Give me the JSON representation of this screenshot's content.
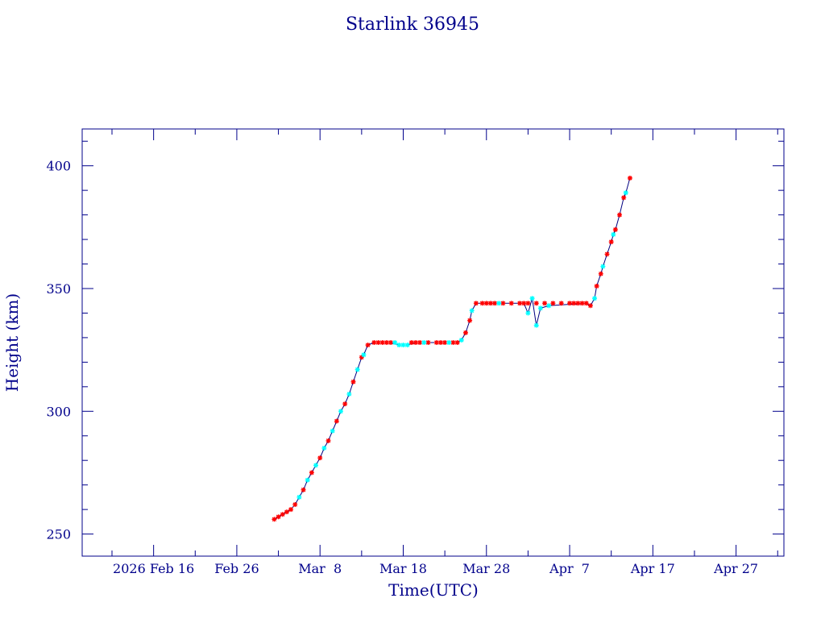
{
  "chart_data": {
    "type": "line",
    "title": "Starlink 36945",
    "xlabel": "Time(UTC)",
    "ylabel": "Height (km)",
    "x_tick_labels": [
      "2026 Feb 16",
      "Feb 26",
      "Mar  8",
      "Mar 18",
      "Mar 28",
      "Apr  7",
      "Apr 17",
      "Apr 27"
    ],
    "x_tick_dates": [
      "2026-02-16",
      "2026-02-26",
      "2026-03-08",
      "2026-03-18",
      "2026-03-28",
      "2026-04-07",
      "2026-04-17",
      "2026-04-27"
    ],
    "xlim": [
      "2026-02-07T10:00",
      "2026-05-02T18:00"
    ],
    "ylim": [
      241,
      415
    ],
    "y_ticks": [
      250,
      300,
      350,
      400
    ],
    "grid": false,
    "colors": {
      "axis": "#00008b",
      "line": "#000080",
      "marker_a": "#ff0000",
      "marker_b": "#00ffff"
    },
    "series": [
      {
        "marker": "red-star",
        "points": [
          [
            "2026-03-02T12:00",
            256
          ],
          [
            "2026-03-03T00:00",
            257
          ],
          [
            "2026-03-03T12:00",
            258
          ],
          [
            "2026-03-04T00:00",
            259
          ],
          [
            "2026-03-04T12:00",
            260
          ],
          [
            "2026-03-05T00:00",
            262
          ],
          [
            "2026-03-06T00:00",
            268
          ],
          [
            "2026-03-07T00:00",
            275
          ],
          [
            "2026-03-08T00:00",
            281
          ],
          [
            "2026-03-09T00:00",
            288
          ],
          [
            "2026-03-10T00:00",
            296
          ],
          [
            "2026-03-11T00:00",
            303
          ],
          [
            "2026-03-12T00:00",
            312
          ],
          [
            "2026-03-13T00:00",
            322
          ],
          [
            "2026-03-13T18:00",
            327
          ],
          [
            "2026-03-14T12:00",
            328
          ],
          [
            "2026-03-15T00:00",
            328
          ],
          [
            "2026-03-15T12:00",
            328
          ],
          [
            "2026-03-16T00:00",
            328
          ],
          [
            "2026-03-16T12:00",
            328
          ],
          [
            "2026-03-19T00:00",
            328
          ],
          [
            "2026-03-19T12:00",
            328
          ],
          [
            "2026-03-20T00:00",
            328
          ],
          [
            "2026-03-21T00:00",
            328
          ],
          [
            "2026-03-22T00:00",
            328
          ],
          [
            "2026-03-22T12:00",
            328
          ],
          [
            "2026-03-23T00:00",
            328
          ],
          [
            "2026-03-24T00:00",
            328
          ],
          [
            "2026-03-24T12:00",
            328
          ],
          [
            "2026-03-25T12:00",
            332
          ],
          [
            "2026-03-26T00:00",
            337
          ],
          [
            "2026-03-26T18:00",
            344
          ],
          [
            "2026-03-27T12:00",
            344
          ],
          [
            "2026-03-28T00:00",
            344
          ],
          [
            "2026-03-28T12:00",
            344
          ],
          [
            "2026-03-29T00:00",
            344
          ],
          [
            "2026-03-30T00:00",
            344
          ],
          [
            "2026-03-31T00:00",
            344
          ],
          [
            "2026-04-01T00:00",
            344
          ],
          [
            "2026-04-01T12:00",
            344
          ],
          [
            "2026-04-02T00:00",
            344
          ],
          [
            "2026-04-03T00:00",
            344
          ],
          [
            "2026-04-04T00:00",
            344
          ],
          [
            "2026-04-05T00:00",
            344
          ],
          [
            "2026-04-06T00:00",
            344
          ],
          [
            "2026-04-07T00:00",
            344
          ],
          [
            "2026-04-07T12:00",
            344
          ],
          [
            "2026-04-08T00:00",
            344
          ],
          [
            "2026-04-08T12:00",
            344
          ],
          [
            "2026-04-09T00:00",
            344
          ],
          [
            "2026-04-09T12:00",
            343
          ],
          [
            "2026-04-10T06:00",
            351
          ],
          [
            "2026-04-10T18:00",
            356
          ],
          [
            "2026-04-11T12:00",
            364
          ],
          [
            "2026-04-12T00:00",
            369
          ],
          [
            "2026-04-12T12:00",
            374
          ],
          [
            "2026-04-13T00:00",
            380
          ],
          [
            "2026-04-13T12:00",
            387
          ],
          [
            "2026-04-14T06:00",
            395
          ]
        ]
      },
      {
        "marker": "cyan-star",
        "points": [
          [
            "2026-03-05T12:00",
            265
          ],
          [
            "2026-03-06T12:00",
            272
          ],
          [
            "2026-03-07T12:00",
            278
          ],
          [
            "2026-03-08T12:00",
            285
          ],
          [
            "2026-03-09T12:00",
            292
          ],
          [
            "2026-03-10T12:00",
            300
          ],
          [
            "2026-03-11T12:00",
            307
          ],
          [
            "2026-03-12T12:00",
            317
          ],
          [
            "2026-03-13T06:00",
            323
          ],
          [
            "2026-03-17T00:00",
            328
          ],
          [
            "2026-03-17T12:00",
            327
          ],
          [
            "2026-03-18T00:00",
            327
          ],
          [
            "2026-03-18T12:00",
            327
          ],
          [
            "2026-03-20T12:00",
            328
          ],
          [
            "2026-03-23T12:00",
            328
          ],
          [
            "2026-03-25T00:00",
            329
          ],
          [
            "2026-03-26T06:00",
            341
          ],
          [
            "2026-03-29T12:00",
            344
          ],
          [
            "2026-04-02T00:00",
            340
          ],
          [
            "2026-04-02T12:00",
            346
          ],
          [
            "2026-04-03T00:00",
            335
          ],
          [
            "2026-04-03T12:00",
            342
          ],
          [
            "2026-04-04T12:00",
            343
          ],
          [
            "2026-04-10T00:00",
            346
          ],
          [
            "2026-04-11T00:00",
            359
          ],
          [
            "2026-04-12T06:00",
            372
          ],
          [
            "2026-04-13T18:00",
            389
          ]
        ]
      }
    ],
    "line_points": [
      [
        "2026-03-02T12:00",
        256
      ],
      [
        "2026-03-03T00:00",
        257
      ],
      [
        "2026-03-03T12:00",
        258
      ],
      [
        "2026-03-04T00:00",
        259
      ],
      [
        "2026-03-04T12:00",
        260
      ],
      [
        "2026-03-05T00:00",
        262
      ],
      [
        "2026-03-05T12:00",
        265
      ],
      [
        "2026-03-06T00:00",
        268
      ],
      [
        "2026-03-06T12:00",
        272
      ],
      [
        "2026-03-07T00:00",
        275
      ],
      [
        "2026-03-07T12:00",
        278
      ],
      [
        "2026-03-08T00:00",
        281
      ],
      [
        "2026-03-08T12:00",
        285
      ],
      [
        "2026-03-09T00:00",
        288
      ],
      [
        "2026-03-09T12:00",
        292
      ],
      [
        "2026-03-10T00:00",
        296
      ],
      [
        "2026-03-10T12:00",
        300
      ],
      [
        "2026-03-11T00:00",
        303
      ],
      [
        "2026-03-11T12:00",
        307
      ],
      [
        "2026-03-12T00:00",
        312
      ],
      [
        "2026-03-12T12:00",
        317
      ],
      [
        "2026-03-13T00:00",
        322
      ],
      [
        "2026-03-13T06:00",
        323
      ],
      [
        "2026-03-13T18:00",
        327
      ],
      [
        "2026-03-14T12:00",
        328
      ],
      [
        "2026-03-16T12:00",
        328
      ],
      [
        "2026-03-17T12:00",
        327
      ],
      [
        "2026-03-18T12:00",
        327
      ],
      [
        "2026-03-19T12:00",
        328
      ],
      [
        "2026-03-24T12:00",
        328
      ],
      [
        "2026-03-25T00:00",
        329
      ],
      [
        "2026-03-25T12:00",
        332
      ],
      [
        "2026-03-26T00:00",
        337
      ],
      [
        "2026-03-26T06:00",
        341
      ],
      [
        "2026-03-26T18:00",
        344
      ],
      [
        "2026-04-01T12:00",
        344
      ],
      [
        "2026-04-02T00:00",
        340
      ],
      [
        "2026-04-02T12:00",
        346
      ],
      [
        "2026-04-03T00:00",
        335
      ],
      [
        "2026-04-03T12:00",
        342
      ],
      [
        "2026-04-04T12:00",
        343
      ],
      [
        "2026-04-09T00:00",
        344
      ],
      [
        "2026-04-09T12:00",
        343
      ],
      [
        "2026-04-10T00:00",
        346
      ],
      [
        "2026-04-10T06:00",
        351
      ],
      [
        "2026-04-10T18:00",
        356
      ],
      [
        "2026-04-11T00:00",
        359
      ],
      [
        "2026-04-11T12:00",
        364
      ],
      [
        "2026-04-12T00:00",
        369
      ],
      [
        "2026-04-12T06:00",
        372
      ],
      [
        "2026-04-12T12:00",
        374
      ],
      [
        "2026-04-13T00:00",
        380
      ],
      [
        "2026-04-13T12:00",
        387
      ],
      [
        "2026-04-13T18:00",
        389
      ],
      [
        "2026-04-14T06:00",
        395
      ]
    ]
  }
}
